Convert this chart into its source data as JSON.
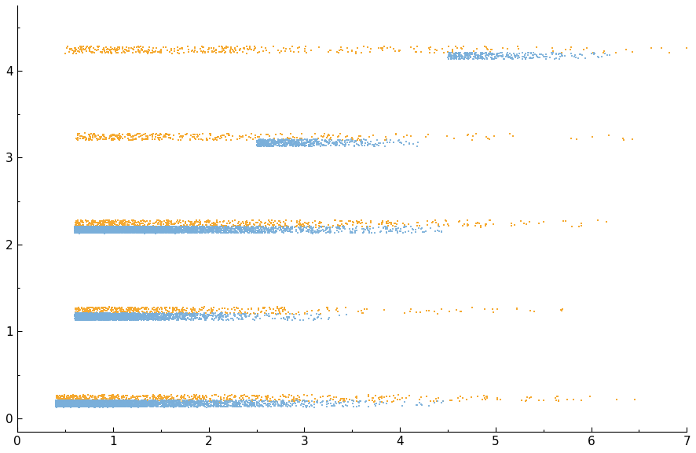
{
  "title": "",
  "xlabel": "",
  "ylabel": "",
  "xlim": [
    0,
    7
  ],
  "ylim": [
    -0.15,
    4.75
  ],
  "xticks": [
    0,
    1,
    2,
    3,
    4,
    5,
    6,
    7
  ],
  "yticks": [
    0,
    1,
    2,
    3,
    4
  ],
  "train_color": "#7aafda",
  "val_color": "#f5a930",
  "background_color": "#ffffff",
  "marker_size": 1.5,
  "seed": 42,
  "classes": [
    {
      "label": 0,
      "y_center_train": 0.17,
      "y_center_val": 0.23,
      "train": {
        "x_min": 0.4,
        "x_max": 4.5,
        "scale": 0.7,
        "n": 4000,
        "y_spread": 0.04
      },
      "val": {
        "x_min": 0.4,
        "x_max": 6.5,
        "scale": 1.5,
        "n": 700,
        "y_spread": 0.04
      }
    },
    {
      "label": 1,
      "y_center_train": 1.17,
      "y_center_val": 1.24,
      "train": {
        "x_min": 0.6,
        "x_max": 3.5,
        "scale": 0.5,
        "n": 2500,
        "y_spread": 0.04
      },
      "val": {
        "x_min": 0.6,
        "x_max": 5.8,
        "scale": 1.2,
        "n": 500,
        "y_spread": 0.04
      }
    },
    {
      "label": 2,
      "y_center_train": 2.17,
      "y_center_val": 2.24,
      "train": {
        "x_min": 0.6,
        "x_max": 4.5,
        "scale": 0.8,
        "n": 4000,
        "y_spread": 0.04
      },
      "val": {
        "x_min": 0.6,
        "x_max": 6.2,
        "scale": 1.5,
        "n": 700,
        "y_spread": 0.04
      }
    },
    {
      "label": 3,
      "y_center_train": 3.17,
      "y_center_val": 3.24,
      "train": {
        "x_min": 2.5,
        "x_max": 4.2,
        "scale": 0.5,
        "n": 600,
        "y_spread": 0.04
      },
      "val": {
        "x_min": 0.6,
        "x_max": 6.5,
        "scale": 1.5,
        "n": 350,
        "y_spread": 0.04
      }
    },
    {
      "label": 4,
      "y_center_train": 4.17,
      "y_center_val": 4.24,
      "train": {
        "x_min": 4.5,
        "x_max": 6.3,
        "scale": 0.5,
        "n": 350,
        "y_spread": 0.04
      },
      "val": {
        "x_min": 0.5,
        "x_max": 7.0,
        "scale": 2.0,
        "n": 400,
        "y_spread": 0.04
      }
    }
  ]
}
